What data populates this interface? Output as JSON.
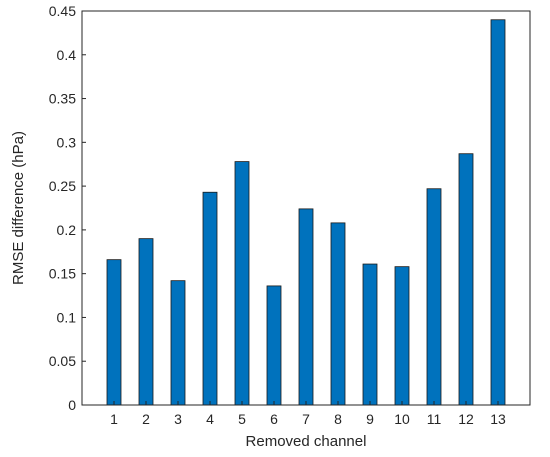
{
  "chart_data": {
    "type": "bar",
    "title": "",
    "xlabel": "Removed channel",
    "ylabel": "RMSE difference (hPa)",
    "categories": [
      "1",
      "2",
      "3",
      "4",
      "5",
      "6",
      "7",
      "8",
      "9",
      "10",
      "11",
      "12",
      "13"
    ],
    "values": [
      0.166,
      0.19,
      0.142,
      0.243,
      0.278,
      0.136,
      0.224,
      0.208,
      0.161,
      0.158,
      0.247,
      0.287,
      0.44
    ],
    "ylim": [
      0,
      0.45
    ],
    "yticks": [
      "0",
      "0.05",
      "0.1",
      "0.15",
      "0.2",
      "0.25",
      "0.3",
      "0.35",
      "0.4",
      "0.45"
    ],
    "bar_color": "#0072BD",
    "grid": false,
    "box": true
  }
}
